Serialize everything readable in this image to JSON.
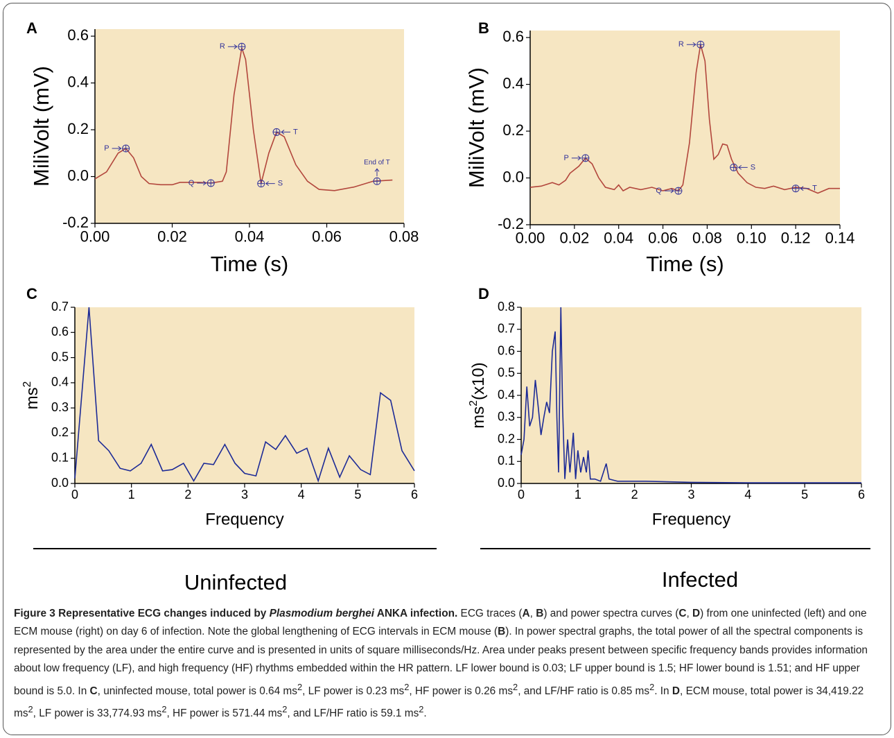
{
  "chart_data": [
    {
      "type": "line",
      "panel": "A",
      "xlabel": "Time (s)",
      "ylabel": [
        "MiliVolt (mV)"
      ],
      "x": [
        0,
        0.003,
        0.006,
        0.008,
        0.01,
        0.012,
        0.014,
        0.017,
        0.02,
        0.022,
        0.027,
        0.03,
        0.033,
        0.034,
        0.036,
        0.038,
        0.039,
        0.041,
        0.043,
        0.045,
        0.047,
        0.049,
        0.052,
        0.055,
        0.058,
        0.062,
        0.067,
        0.072,
        0.077
      ],
      "values": [
        -0.01,
        0.02,
        0.1,
        0.12,
        0.08,
        0.0,
        -0.03,
        -0.035,
        -0.035,
        -0.025,
        -0.025,
        -0.028,
        -0.02,
        0.02,
        0.35,
        0.55,
        0.5,
        0.2,
        -0.03,
        0.1,
        0.19,
        0.17,
        0.05,
        -0.02,
        -0.055,
        -0.06,
        -0.045,
        -0.02,
        -0.015
      ],
      "color": "#b2463c",
      "annotations": [
        {
          "label": "P",
          "x": 0.008,
          "y": 0.12
        },
        {
          "label": "R",
          "x": 0.038,
          "y": 0.555
        },
        {
          "label": "Q",
          "x": 0.03,
          "y": -0.028
        },
        {
          "label": "S",
          "x": 0.043,
          "y": -0.03
        },
        {
          "label": "T",
          "x": 0.047,
          "y": 0.19
        },
        {
          "label": "End of T",
          "x": 0.073,
          "y": -0.02
        }
      ],
      "xlim": [
        0,
        0.08
      ],
      "xticks": [
        {
          "value": 0,
          "label": "0.00"
        },
        0.02,
        0.04,
        0.06,
        0.08
      ],
      "ylim": [
        -0.2,
        0.63
      ],
      "yticks": [
        -0.2,
        {
          "value": 0,
          "label": "0.0"
        },
        0.2,
        0.4,
        0.6
      ],
      "grid": false
    },
    {
      "type": "line",
      "panel": "B",
      "xlabel": "Time (s)",
      "ylabel": [
        "MiliVolt (mV)"
      ],
      "x": [
        0,
        0.005,
        0.01,
        0.013,
        0.016,
        0.018,
        0.022,
        0.025,
        0.028,
        0.031,
        0.034,
        0.036,
        0.038,
        0.04,
        0.042,
        0.045,
        0.05,
        0.055,
        0.06,
        0.064,
        0.067,
        0.069,
        0.072,
        0.075,
        0.077,
        0.079,
        0.081,
        0.083,
        0.085,
        0.087,
        0.089,
        0.091,
        0.094,
        0.098,
        0.102,
        0.106,
        0.11,
        0.115,
        0.12,
        0.125,
        0.13,
        0.135,
        0.14
      ],
      "values": [
        -0.04,
        -0.035,
        -0.02,
        -0.03,
        -0.01,
        0.02,
        0.05,
        0.085,
        0.06,
        0.0,
        -0.04,
        -0.045,
        -0.05,
        -0.03,
        -0.055,
        -0.04,
        -0.05,
        -0.04,
        -0.055,
        -0.045,
        -0.055,
        -0.03,
        0.15,
        0.45,
        0.57,
        0.5,
        0.25,
        0.08,
        0.1,
        0.145,
        0.14,
        0.08,
        0.02,
        -0.02,
        -0.04,
        -0.045,
        -0.035,
        -0.05,
        -0.04,
        -0.045,
        -0.065,
        -0.045,
        -0.045
      ],
      "color": "#b2463c",
      "annotations": [
        {
          "label": "P",
          "x": 0.025,
          "y": 0.085
        },
        {
          "label": "R",
          "x": 0.077,
          "y": 0.57
        },
        {
          "label": "Q",
          "x": 0.067,
          "y": -0.055
        },
        {
          "label": "S",
          "x": 0.092,
          "y": 0.045
        },
        {
          "label": "T",
          "x": 0.12,
          "y": -0.045
        }
      ],
      "xlim": [
        0,
        0.14
      ],
      "xticks": [
        {
          "value": 0,
          "label": "0.00"
        },
        0.02,
        0.04,
        0.06,
        0.08,
        {
          "value": 0.1,
          "label": "0.10"
        },
        0.12,
        0.14
      ],
      "ylim": [
        -0.2,
        0.63
      ],
      "yticks": [
        -0.2,
        {
          "value": 0,
          "label": "0.0"
        },
        0.2,
        0.4,
        0.6
      ],
      "grid": false
    },
    {
      "type": "line",
      "panel": "C",
      "xlabel": "Frequency",
      "ylabel": [
        "ms",
        "2"
      ],
      "x": [
        0,
        0.25,
        0.42,
        0.6,
        0.8,
        0.98,
        1.17,
        1.35,
        1.55,
        1.72,
        1.92,
        2.1,
        2.28,
        2.45,
        2.65,
        2.83,
        3.0,
        3.2,
        3.37,
        3.55,
        3.72,
        3.92,
        4.1,
        4.3,
        4.48,
        4.68,
        4.85,
        5.05,
        5.22,
        5.4,
        5.58,
        5.78,
        6.0
      ],
      "values": [
        0.02,
        0.7,
        0.17,
        0.13,
        0.06,
        0.05,
        0.08,
        0.155,
        0.05,
        0.055,
        0.08,
        0.01,
        0.08,
        0.075,
        0.155,
        0.08,
        0.04,
        0.03,
        0.165,
        0.135,
        0.19,
        0.12,
        0.14,
        0.01,
        0.14,
        0.025,
        0.11,
        0.055,
        0.035,
        0.36,
        0.33,
        0.13,
        0.05
      ],
      "color": "#1c2a96",
      "xlim": [
        0,
        6
      ],
      "xticks": [
        0,
        1,
        2,
        3,
        4,
        5,
        6
      ],
      "ylim": [
        0,
        0.7
      ],
      "yticks": [
        {
          "value": 0,
          "label": "0.0"
        },
        0.1,
        0.2,
        0.3,
        0.4,
        0.5,
        0.6,
        0.7
      ],
      "grid": false
    },
    {
      "type": "line",
      "panel": "D",
      "xlabel": "Frequency",
      "ylabel": [
        "ms",
        "2",
        "(x10)"
      ],
      "x": [
        0,
        0.05,
        0.1,
        0.15,
        0.2,
        0.25,
        0.3,
        0.35,
        0.4,
        0.45,
        0.5,
        0.55,
        0.6,
        0.63,
        0.66,
        0.7,
        0.73,
        0.77,
        0.82,
        0.86,
        0.92,
        0.96,
        1.0,
        1.05,
        1.1,
        1.15,
        1.18,
        1.22,
        1.3,
        1.4,
        1.5,
        1.55,
        1.7,
        2.0,
        2.2,
        3.0,
        4.0,
        5.0,
        6.0
      ],
      "values": [
        0.13,
        0.2,
        0.44,
        0.26,
        0.3,
        0.47,
        0.35,
        0.22,
        0.3,
        0.37,
        0.32,
        0.6,
        0.69,
        0.3,
        0.05,
        0.8,
        0.35,
        0.02,
        0.2,
        0.05,
        0.23,
        0.02,
        0.15,
        0.05,
        0.12,
        0.05,
        0.15,
        0.02,
        0.02,
        0.01,
        0.09,
        0.02,
        0.01,
        0.01,
        0.01,
        0.005,
        0.003,
        0.003,
        0.003
      ],
      "color": "#1c2a96",
      "xlim": [
        0,
        6
      ],
      "xticks": [
        0,
        1,
        2,
        3,
        4,
        5,
        6
      ],
      "ylim": [
        0,
        0.8
      ],
      "yticks": [
        {
          "value": 0,
          "label": "0.0"
        },
        0.1,
        0.2,
        0.3,
        0.4,
        0.5,
        0.6,
        0.7,
        0.8
      ],
      "grid": false
    }
  ],
  "groups": [
    "Uninfected",
    "Infected"
  ],
  "caption": [
    "Figure 3 Representative ECG changes induced by ",
    "Plasmodium berghei",
    " ANKA infection.",
    " ECG traces (",
    "A",
    ", ",
    "B",
    ") and power spectra curves (",
    "C",
    ", ",
    "D",
    ") from one uninfected (left) and one ECM mouse (right) on day 6 of infection. Note the global lengthening of ECG intervals in ECM mouse (",
    "B",
    "). In power spectral graphs, the total power of all the spectral components is represented by the area under the entire curve and is presented in units of square milliseconds/Hz. Area under peaks present between specific frequency bands provides information about low frequency (LF), and high frequency (HF) rhythms embedded within the HR pattern. LF lower bound is 0.03; LF upper bound is 1.5; HF lower bound is 1.51; and HF upper bound is 5.0. In ",
    "C",
    ", uninfected mouse, total power is 0.64 ms",
    "2",
    ", LF power is 0.23 ms",
    "2",
    ", HF power is 0.26 ms",
    "2",
    ", and LF/HF ratio is 0.85 ms",
    "2",
    ". In ",
    "D",
    ", ECM mouse, total power is 34,419.22 ms",
    "2",
    ", LF power is 33,774.93 ms",
    "2",
    ", HF power is 571.44 ms",
    "2",
    ", and LF/HF ratio is 59.1 ms",
    "2",
    "."
  ]
}
